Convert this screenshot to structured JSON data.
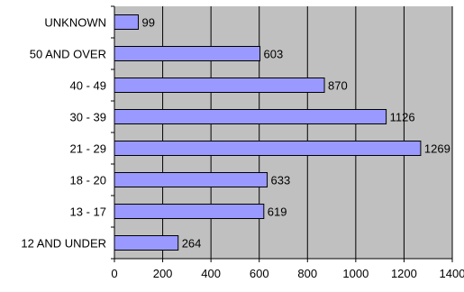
{
  "chart_data": {
    "type": "bar",
    "orientation": "horizontal",
    "categories": [
      "UNKNOWN",
      "50 AND OVER",
      "40 - 49",
      "30 - 39",
      "21 - 29",
      "18 - 20",
      "13 - 17",
      "12 AND UNDER"
    ],
    "values": [
      99,
      603,
      870,
      1126,
      1269,
      633,
      619,
      264
    ],
    "x_ticks": [
      "0",
      "200",
      "400",
      "600",
      "800",
      "1000",
      "1200",
      "1400"
    ],
    "xlim": [
      0,
      1400
    ],
    "grid": "vertical",
    "legend": "none",
    "colors": {
      "plot_background": "#c0c0c0",
      "bar_fill": "#9999ff",
      "bar_stroke": "#000000",
      "grid": "#000000"
    }
  }
}
